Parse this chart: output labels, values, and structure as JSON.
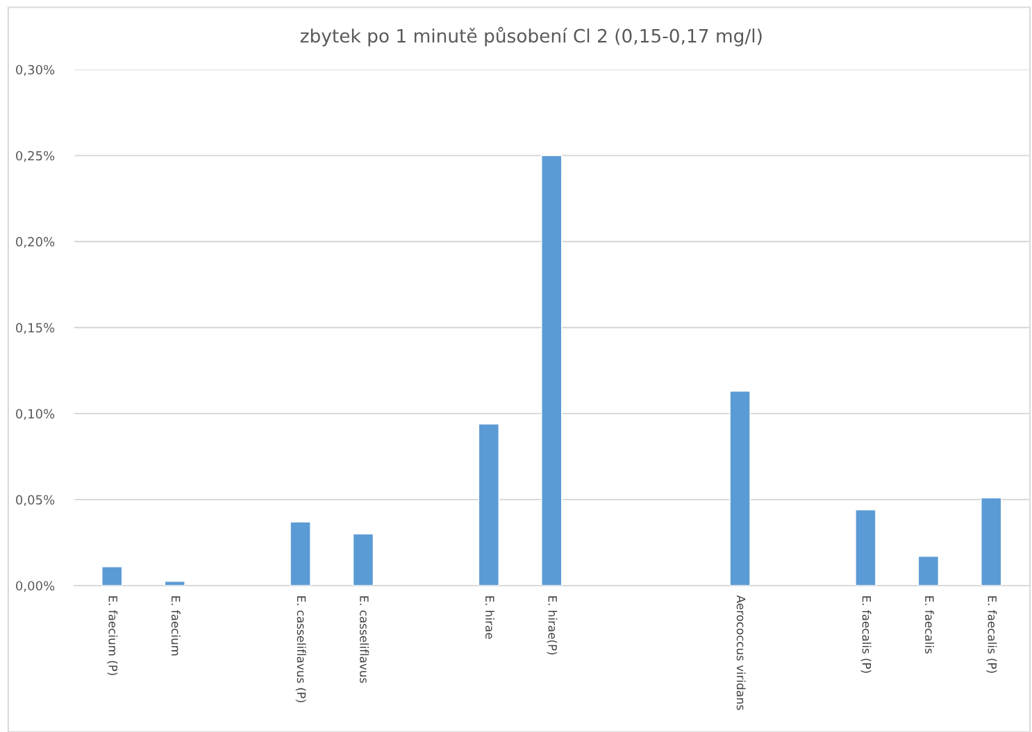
{
  "chart_data": {
    "type": "bar",
    "title": "zbytek po 1 minutě působení Cl 2 (0,15-0,17 mg/l)",
    "categories": [
      "E. faecium (P)",
      "E. faecium",
      null,
      "E. casseliflavus (P)",
      "E. casseliflavus",
      null,
      "E. hirae",
      "E. hirae(P)",
      null,
      null,
      "Aerococcus viridans",
      null,
      "E. faecalis (P)",
      "E. faecalis",
      "E. faecalis (P)"
    ],
    "values": [
      0.011,
      0.0025,
      null,
      0.037,
      0.03,
      null,
      0.094,
      0.25,
      null,
      null,
      0.113,
      null,
      0.044,
      0.017,
      0.051
    ],
    "color": "#5b9bd5",
    "ylim": [
      0,
      0.3
    ],
    "yticks": [
      {
        "value": 0,
        "label": "0,00%"
      },
      {
        "value": 0.05,
        "label": "0,05%"
      },
      {
        "value": 0.1,
        "label": "0,10%"
      },
      {
        "value": 0.15,
        "label": "0,15%"
      },
      {
        "value": 0.2,
        "label": "0,20%"
      },
      {
        "value": 0.25,
        "label": "0,25%"
      },
      {
        "value": 0.3,
        "label": "0,30%"
      }
    ],
    "grid": "y"
  }
}
